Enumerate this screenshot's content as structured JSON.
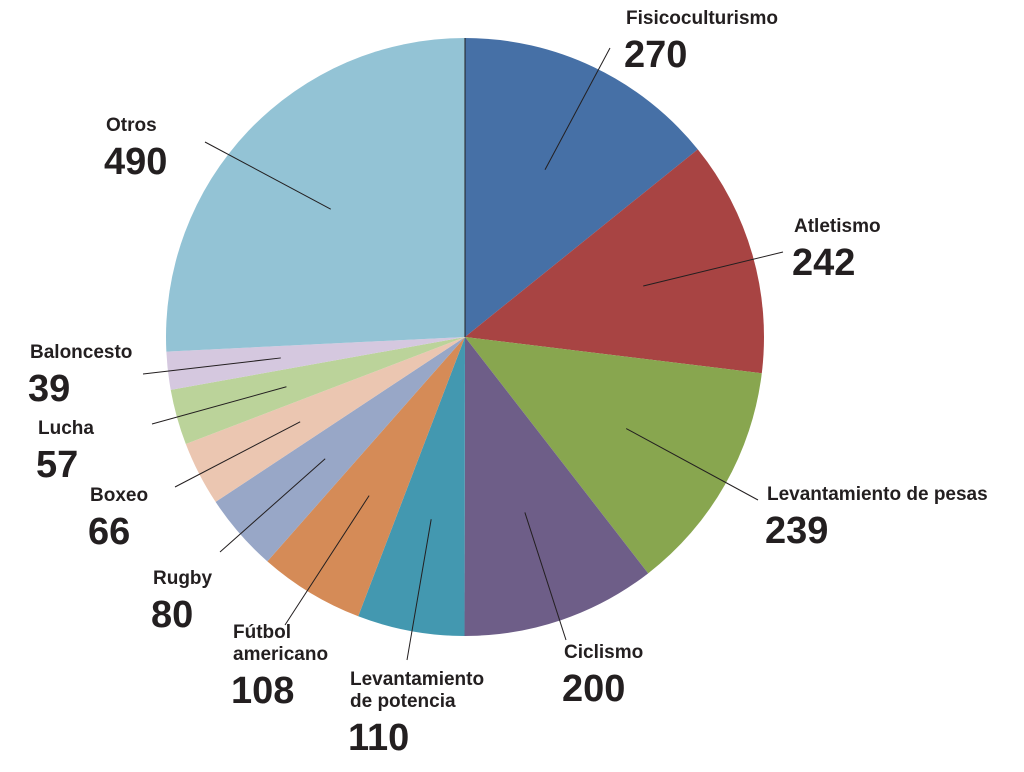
{
  "chart_data": {
    "type": "pie",
    "start": "12 o'clock, clockwise",
    "slices": [
      {
        "label": [
          "Fisicoculturismo"
        ],
        "value": 270,
        "value_text": "270",
        "color": "#4670a6"
      },
      {
        "label": [
          "Atletismo"
        ],
        "value": 242,
        "value_text": "242",
        "color": "#a84443"
      },
      {
        "label": [
          "Levantamiento de pesas"
        ],
        "value": 239,
        "value_text": "239",
        "color": "#88a64f"
      },
      {
        "label": [
          "Ciclismo"
        ],
        "value": 200,
        "value_text": "200",
        "color": "#6e5e88"
      },
      {
        "label": [
          "Levantamiento",
          "de potencia"
        ],
        "value": 110,
        "value_text": "110",
        "color": "#4398b0"
      },
      {
        "label": [
          "Fútbol",
          "americano"
        ],
        "value": 108,
        "value_text": "108",
        "color": "#d58b57"
      },
      {
        "label": [
          "Rugby"
        ],
        "value": 80,
        "value_text": "80",
        "color": "#98a7c7"
      },
      {
        "label": [
          "Boxeo"
        ],
        "value": 66,
        "value_text": "66",
        "color": "#ebc6b1"
      },
      {
        "label": [
          "Lucha"
        ],
        "value": 57,
        "value_text": "57",
        "color": "#bbd39a"
      },
      {
        "label": [
          "Baloncesto"
        ],
        "value": 39,
        "value_text": "39",
        "color": "#d5c8df"
      },
      {
        "label": [
          "Otros"
        ],
        "value": 490,
        "value_text": "490",
        "color": "#93c3d5"
      }
    ]
  }
}
